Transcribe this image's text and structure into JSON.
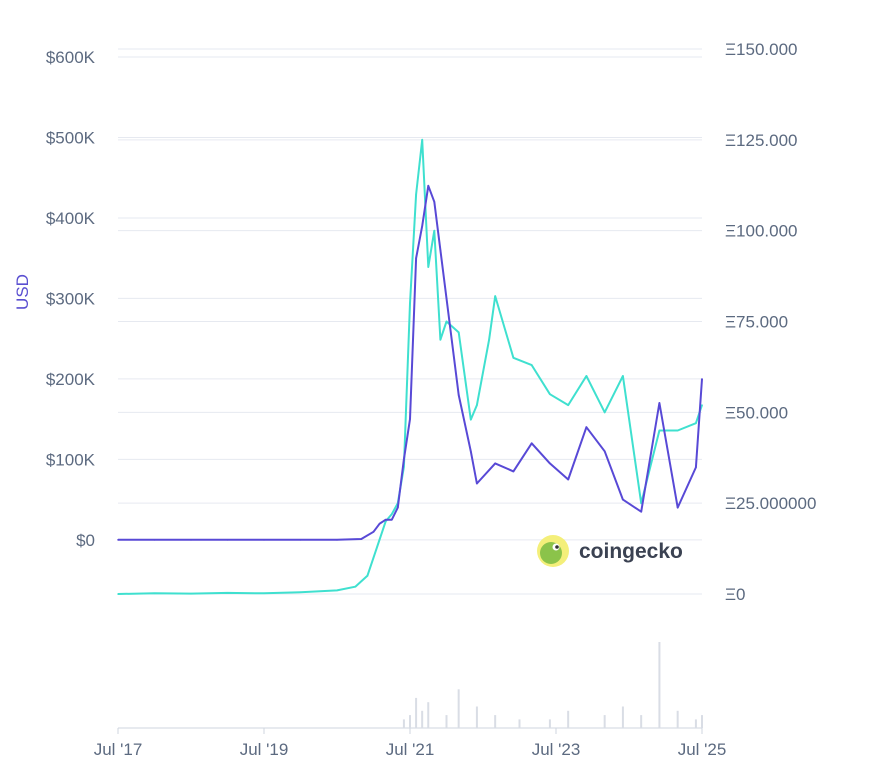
{
  "chart_data": {
    "type": "line",
    "title": "",
    "xlabel": "",
    "ylabel": "USD",
    "brand": "coingecko",
    "colors": {
      "usd": "#5849d6",
      "eth": "#3fe0cf",
      "grid": "#e6e9f0",
      "axis_text": "#5c6a80",
      "ylabel": "#5a4fd1",
      "volume": "#d9dde5"
    },
    "x_ticks": [
      "Jul '17",
      "Jul '19",
      "Jul '21",
      "Jul '23",
      "Jul '25"
    ],
    "x_tick_dates": [
      "2017-07",
      "2019-07",
      "2021-07",
      "2023-07",
      "2025-07"
    ],
    "y_left": {
      "ticks": [
        "$0",
        "$100K",
        "$200K",
        "$300K",
        "$400K",
        "$500K",
        "$600K"
      ],
      "tick_values": [
        0,
        100000,
        200000,
        300000,
        400000,
        500000,
        600000
      ],
      "range": [
        -81000,
        600000
      ]
    },
    "y_right": {
      "ticks": [
        "Ξ0",
        "Ξ25.000000",
        "Ξ50.000",
        "Ξ75.000",
        "Ξ100.000",
        "Ξ125.000",
        "Ξ150.000"
      ],
      "tick_values": [
        0,
        25,
        50,
        75,
        100,
        125,
        150
      ],
      "range": [
        0,
        150
      ]
    },
    "grid": true,
    "series": [
      {
        "name": "",
        "axis": "left",
        "color": "#5849d6",
        "x": [
          "2017-07",
          "2018-01",
          "2018-07",
          "2019-01",
          "2019-07",
          "2020-01",
          "2020-07",
          "2020-11",
          "2021-01",
          "2021-02",
          "2021-03",
          "2021-04",
          "2021-05",
          "2021-06",
          "2021-07",
          "2021-08",
          "2021-09",
          "2021-10",
          "2021-11",
          "2021-12",
          "2022-01",
          "2022-03",
          "2022-05",
          "2022-06",
          "2022-09",
          "2022-12",
          "2023-03",
          "2023-06",
          "2023-09",
          "2023-12",
          "2024-03",
          "2024-06",
          "2024-09",
          "2024-12",
          "2025-03",
          "2025-06",
          "2025-07"
        ],
        "y": [
          0,
          0,
          0,
          0,
          0,
          0,
          0,
          1000,
          10000,
          20000,
          25000,
          25000,
          40000,
          100000,
          150000,
          350000,
          390000,
          440000,
          420000,
          360000,
          300000,
          180000,
          110000,
          70000,
          95000,
          85000,
          120000,
          95000,
          75000,
          140000,
          110000,
          50000,
          35000,
          170000,
          40000,
          90000,
          200000
        ]
      },
      {
        "name": "",
        "axis": "right",
        "color": "#3fe0cf",
        "x": [
          "2017-07",
          "2018-01",
          "2018-07",
          "2019-01",
          "2019-07",
          "2020-01",
          "2020-07",
          "2020-10",
          "2020-12",
          "2021-01",
          "2021-02",
          "2021-03",
          "2021-04",
          "2021-05",
          "2021-06",
          "2021-07",
          "2021-08",
          "2021-09",
          "2021-10",
          "2021-11",
          "2021-12",
          "2022-01",
          "2022-03",
          "2022-05",
          "2022-06",
          "2022-08",
          "2022-09",
          "2022-12",
          "2023-03",
          "2023-06",
          "2023-09",
          "2023-12",
          "2024-03",
          "2024-06",
          "2024-09",
          "2024-12",
          "2025-03",
          "2025-06",
          "2025-07"
        ],
        "y": [
          0,
          0.2,
          0.1,
          0.3,
          0.2,
          0.5,
          1,
          2,
          5,
          10,
          15,
          20,
          22,
          25,
          35,
          80,
          110,
          125,
          90,
          100,
          70,
          75,
          72,
          48,
          52,
          70,
          82,
          65,
          63,
          55,
          52,
          60,
          50,
          60,
          25,
          45,
          45,
          47,
          52
        ]
      }
    ],
    "volume": {
      "x": [
        "2021-06",
        "2021-07",
        "2021-08",
        "2021-09",
        "2021-10",
        "2022-01",
        "2022-03",
        "2022-06",
        "2022-09",
        "2023-01",
        "2023-06",
        "2023-09",
        "2024-03",
        "2024-06",
        "2024-09",
        "2024-12",
        "2025-03",
        "2025-06",
        "2025-07"
      ],
      "values": [
        0.1,
        0.15,
        0.35,
        0.2,
        0.3,
        0.15,
        0.45,
        0.25,
        0.15,
        0.1,
        0.1,
        0.2,
        0.15,
        0.25,
        0.15,
        1.0,
        0.2,
        0.1,
        0.15
      ]
    }
  }
}
